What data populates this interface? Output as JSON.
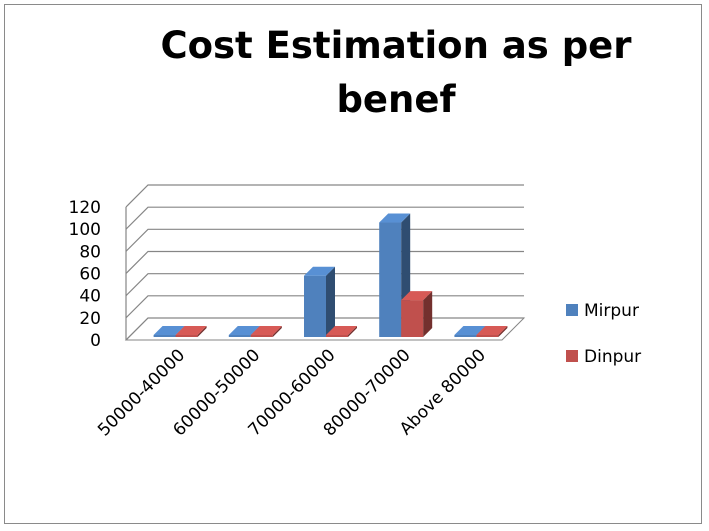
{
  "chart_data": {
    "type": "bar",
    "title_lines": [
      "Cost Estimation as per",
      "benef"
    ],
    "categories": [
      "50000-40000",
      "60000-50000",
      "70000-60000",
      "80000-70000",
      "Above 80000"
    ],
    "series": [
      {
        "name": "Mirpur",
        "values": [
          0,
          0,
          58,
          106,
          0
        ],
        "color": "#4f81bd"
      },
      {
        "name": "Dinpur",
        "values": [
          0,
          0,
          0,
          36,
          0
        ],
        "color": "#c0504d"
      }
    ],
    "ylim": [
      0,
      120
    ],
    "yticks": [
      0,
      20,
      40,
      60,
      80,
      100,
      120
    ],
    "grid": true,
    "legend_position": "right",
    "three_d": true
  }
}
